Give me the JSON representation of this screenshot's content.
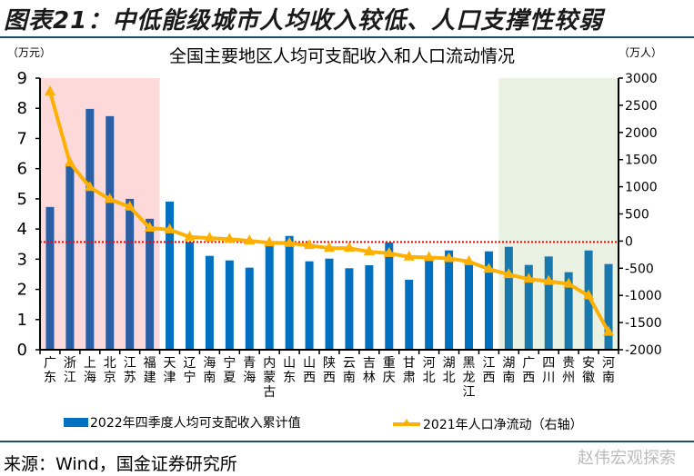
{
  "header": {
    "title": "图表21：中低能级城市人均收入较低、人口支撑性较弱"
  },
  "footer": {
    "source": "来源：Wind，国金证券研究所",
    "watermark": "赵伟宏观探索"
  },
  "chart_data": {
    "type": "bar+line",
    "title": "全国主要地区人均可支配收入和人口流动情况",
    "ylabel_left": "（万元）",
    "ylabel_right": "（万人）",
    "ylim_left": [
      0,
      9
    ],
    "yticks_left": [
      "0",
      "1",
      "2",
      "3",
      "4",
      "5",
      "6",
      "7",
      "8",
      "9"
    ],
    "ylim_right": [
      -2000,
      3000
    ],
    "yticks_right": [
      "-2000",
      "-1500",
      "-1000",
      "-500",
      "0",
      "500",
      "1000",
      "1500",
      "2000",
      "2500",
      "3000"
    ],
    "categories": [
      "广东",
      "浙江",
      "上海",
      "北京",
      "江苏",
      "福建",
      "天津",
      "辽宁",
      "海南",
      "宁夏",
      "青海",
      "内蒙古",
      "山东",
      "山西",
      "陕西",
      "云南",
      "吉林",
      "重庆",
      "甘肃",
      "河北",
      "湖北",
      "黑龙江",
      "江西",
      "湖南",
      "广西",
      "四川",
      "贵州",
      "安徽",
      "河南"
    ],
    "series": [
      {
        "name": "2022年四季度人均可支配收入累计值",
        "type": "bar",
        "axis": "left",
        "color": "#0070c0",
        "values": [
          4.73,
          6.1,
          7.98,
          7.74,
          5.0,
          4.34,
          4.91,
          3.57,
          3.11,
          2.96,
          2.72,
          3.47,
          3.77,
          2.93,
          3.02,
          2.7,
          2.8,
          3.55,
          2.32,
          2.97,
          3.29,
          2.87,
          3.26,
          3.41,
          2.81,
          3.09,
          2.57,
          3.29,
          2.84
        ]
      },
      {
        "name": "2021年人口净流动（右轴）",
        "type": "line",
        "axis": "right",
        "color": "#ffb000",
        "values": [
          2750,
          1440,
          990,
          770,
          630,
          240,
          210,
          75,
          55,
          35,
          5,
          -30,
          -40,
          -80,
          -130,
          -130,
          -195,
          -225,
          -290,
          -300,
          -320,
          -375,
          -515,
          -615,
          -700,
          -740,
          -790,
          -1005,
          -1675
        ]
      }
    ],
    "reference_line": {
      "value_left": 3.57,
      "color": "#ff0000",
      "style": "dotted"
    },
    "highlight_regions": [
      {
        "from": "广东",
        "to": "福建",
        "color": "#fdd9d9"
      },
      {
        "from": "湖南",
        "to": "河南",
        "color": "#e9f1e2"
      }
    ],
    "legend_placement": "bottom"
  }
}
